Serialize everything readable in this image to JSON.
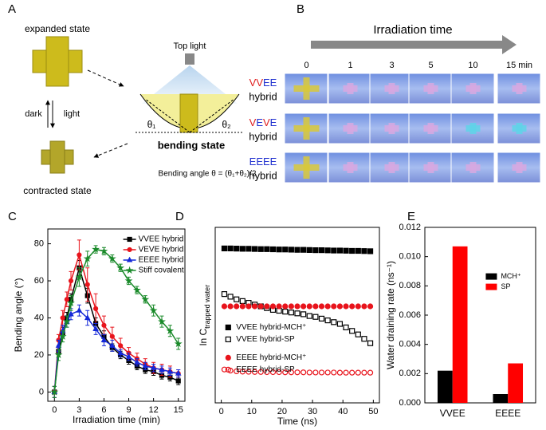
{
  "panel_a": {
    "label": "A",
    "expanded": "expanded state",
    "top_light": "Top light",
    "dark": "dark",
    "light": "light",
    "theta1": "θ₁",
    "theta2": "θ₂",
    "bending": "bending state",
    "formula": "Bending angle θ = (θ₁+θ₂)/2",
    "contracted": "contracted state"
  },
  "panel_b": {
    "label": "B",
    "axis_title": "Irradiation time",
    "times": [
      "0",
      "1",
      "3",
      "5",
      "10",
      "15 min"
    ],
    "rows": [
      {
        "letters": [
          {
            "text": "V",
            "color": "#e02020"
          },
          {
            "text": "V",
            "color": "#e02020"
          },
          {
            "text": "E",
            "color": "#2030d0"
          },
          {
            "text": "E",
            "color": "#2030d0"
          }
        ],
        "suffix": "hybrid"
      },
      {
        "letters": [
          {
            "text": "V",
            "color": "#e02020"
          },
          {
            "text": "E",
            "color": "#2030d0"
          },
          {
            "text": "V",
            "color": "#e02020"
          },
          {
            "text": "E",
            "color": "#2030d0"
          }
        ],
        "suffix": "hybrid"
      },
      {
        "letters": [
          {
            "text": "E",
            "color": "#2030d0"
          },
          {
            "text": "E",
            "color": "#2030d0"
          },
          {
            "text": "E",
            "color": "#2030d0"
          },
          {
            "text": "E",
            "color": "#2030d0"
          }
        ],
        "suffix": "hybrid"
      }
    ]
  },
  "chart_data": [
    {
      "type": "line",
      "label": "C",
      "x_label": "Irradiation time (min)",
      "y_label": "Bending angle (°)",
      "x": [
        0,
        0.5,
        1,
        1.5,
        2,
        3,
        4,
        5,
        6,
        7,
        8,
        9,
        10,
        11,
        12,
        13,
        14,
        15
      ],
      "xlim": [
        -0.8,
        15.8
      ],
      "xticks": [
        0,
        3,
        6,
        9,
        12,
        15
      ],
      "ylim": [
        -5,
        88
      ],
      "yticks": [
        0,
        20,
        40,
        60,
        80
      ],
      "legend": "upper right",
      "series": [
        {
          "name": "VVEE hybrid",
          "color": "#000000",
          "marker": "square",
          "values": [
            0,
            22,
            32,
            40,
            50,
            67,
            52,
            37,
            30,
            24,
            20,
            17,
            14,
            12,
            11,
            9,
            8,
            6
          ],
          "errors": [
            3,
            3,
            3,
            3,
            3,
            4,
            4,
            3,
            3,
            2,
            2,
            2,
            2,
            2,
            2,
            2,
            2,
            2
          ]
        },
        {
          "name": "VEVE hybrid",
          "color": "#e8141c",
          "marker": "circle",
          "values": [
            0,
            28,
            40,
            50,
            60,
            74,
            58,
            45,
            36,
            30,
            25,
            21,
            18,
            15,
            13,
            12,
            11,
            10
          ],
          "errors": [
            3,
            3,
            4,
            4,
            5,
            8,
            9,
            8,
            5,
            5,
            4,
            3,
            3,
            3,
            3,
            3,
            3,
            2
          ]
        },
        {
          "name": "EEEE hybrid",
          "color": "#1428d8",
          "marker": "triangle",
          "values": [
            0,
            25,
            33,
            38,
            42,
            44,
            40,
            34,
            28,
            25,
            21,
            19,
            16,
            14,
            13,
            12,
            11,
            10
          ],
          "errors": [
            3,
            3,
            3,
            3,
            3,
            3,
            4,
            3,
            3,
            3,
            2,
            2,
            2,
            2,
            2,
            2,
            2,
            2
          ]
        },
        {
          "name": "Stiff covalent",
          "color": "#1a8a2a",
          "marker": "star",
          "values": [
            0,
            20,
            30,
            38,
            48,
            62,
            72,
            77,
            76,
            72,
            67,
            60,
            55,
            50,
            44,
            38,
            33,
            26
          ],
          "errors": [
            3,
            3,
            3,
            3,
            4,
            5,
            4,
            2,
            2,
            2,
            2,
            2,
            2,
            2,
            3,
            3,
            3,
            3
          ]
        }
      ]
    },
    {
      "type": "scatter",
      "label": "D",
      "x_label": "Time (ns)",
      "y_label": "ln C",
      "y_label_sub": "trapped water",
      "x": [
        1,
        3,
        5,
        7,
        9,
        11,
        13,
        15,
        17,
        19,
        21,
        23,
        25,
        27,
        29,
        31,
        33,
        35,
        37,
        39,
        41,
        43,
        45,
        47,
        49
      ],
      "xlim": [
        -2,
        52
      ],
      "xticks": [
        0,
        10,
        20,
        30,
        40,
        50
      ],
      "ylim": [
        0,
        100
      ],
      "legend": "center left",
      "series": [
        {
          "name": "VVEE hybrid-MCH⁺",
          "color": "#000000",
          "marker": "square",
          "filled": true,
          "values": [
            88,
            88,
            87.9,
            87.8,
            87.8,
            87.7,
            87.6,
            87.6,
            87.5,
            87.4,
            87.4,
            87.3,
            87.2,
            87.2,
            87.1,
            87,
            87,
            86.9,
            86.8,
            86.8,
            86.7,
            86.6,
            86.6,
            86.5,
            86.4
          ]
        },
        {
          "name": "VVEE hybrid-SP",
          "color": "#000000",
          "marker": "square",
          "filled": false,
          "values": [
            62,
            60.5,
            59,
            58,
            57,
            56,
            55,
            54,
            53,
            52.5,
            52,
            51.5,
            51,
            50.5,
            49.5,
            49,
            48,
            47,
            46,
            45,
            43,
            41,
            39,
            36.5,
            34
          ]
        },
        {
          "name": "EEEE hybrid-MCH⁺",
          "color": "#e8141c",
          "marker": "circle",
          "filled": true,
          "values": [
            55,
            55,
            55,
            55,
            55,
            55,
            55,
            55,
            55,
            55,
            55,
            55,
            55,
            55,
            55,
            55,
            55,
            55,
            55,
            55,
            55,
            55,
            55,
            55,
            55
          ]
        },
        {
          "name": "EEEE hybrid-SP",
          "color": "#e8141c",
          "marker": "circle",
          "filled": false,
          "values": [
            19,
            18.4,
            18,
            17.8,
            17.7,
            17.6,
            17.6,
            17.5,
            17.5,
            17.5,
            17.4,
            17.4,
            17.4,
            17.4,
            17.3,
            17.3,
            17.3,
            17.3,
            17.3,
            17.2,
            17.2,
            17.2,
            17.2,
            17.2,
            17.2
          ]
        }
      ]
    },
    {
      "type": "bar",
      "label": "E",
      "y_label": "Water draining rate (ns⁻¹)",
      "categories": [
        "VVEE",
        "EEEE"
      ],
      "ylim": [
        0,
        0.012
      ],
      "yticks": [
        {
          "value": 0,
          "label": "0.000"
        },
        {
          "value": 0.002,
          "label": "0.002"
        },
        {
          "value": 0.004,
          "label": "0.004"
        },
        {
          "value": 0.006,
          "label": "0.006"
        },
        {
          "value": 0.008,
          "label": "0.008"
        },
        {
          "value": 0.01,
          "label": "0.010"
        },
        {
          "value": 0.012,
          "label": "0.012"
        }
      ],
      "legend": "center right",
      "series": [
        {
          "name": "MCH⁺",
          "color": "#000000",
          "values": [
            0.0022,
            0.0006
          ]
        },
        {
          "name": "SP",
          "color": "#ff0000",
          "values": [
            0.0107,
            0.0027
          ]
        }
      ]
    }
  ]
}
